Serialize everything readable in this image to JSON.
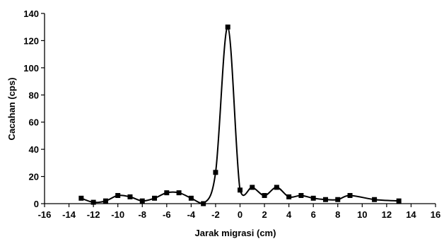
{
  "chart_data": {
    "type": "line",
    "title": "",
    "xlabel": "Jarak migrasi (cm)",
    "ylabel": "Cacahan (cps)",
    "xlim": [
      -16,
      16
    ],
    "ylim": [
      0,
      140
    ],
    "xticks": [
      -16,
      -14,
      -12,
      -10,
      -8,
      -6,
      -4,
      -2,
      0,
      2,
      4,
      6,
      8,
      10,
      12,
      14,
      16
    ],
    "yticks": [
      0,
      20,
      40,
      60,
      80,
      100,
      120,
      140
    ],
    "grid": false,
    "legend": "none",
    "line_color": "#000000",
    "marker": "square",
    "series": [
      {
        "x": [
          -13,
          -12,
          -11,
          -10,
          -9,
          -8,
          -7,
          -6,
          -5,
          -4,
          -3,
          -2,
          -1,
          0,
          1,
          2,
          3,
          4,
          5,
          6,
          7,
          8,
          9,
          11,
          13
        ],
        "y": [
          4,
          1,
          2,
          6,
          5,
          2,
          4,
          8,
          8,
          4,
          0,
          23,
          130,
          10,
          12,
          6,
          12,
          5,
          6,
          4,
          3,
          3,
          6,
          3,
          2
        ]
      }
    ]
  }
}
